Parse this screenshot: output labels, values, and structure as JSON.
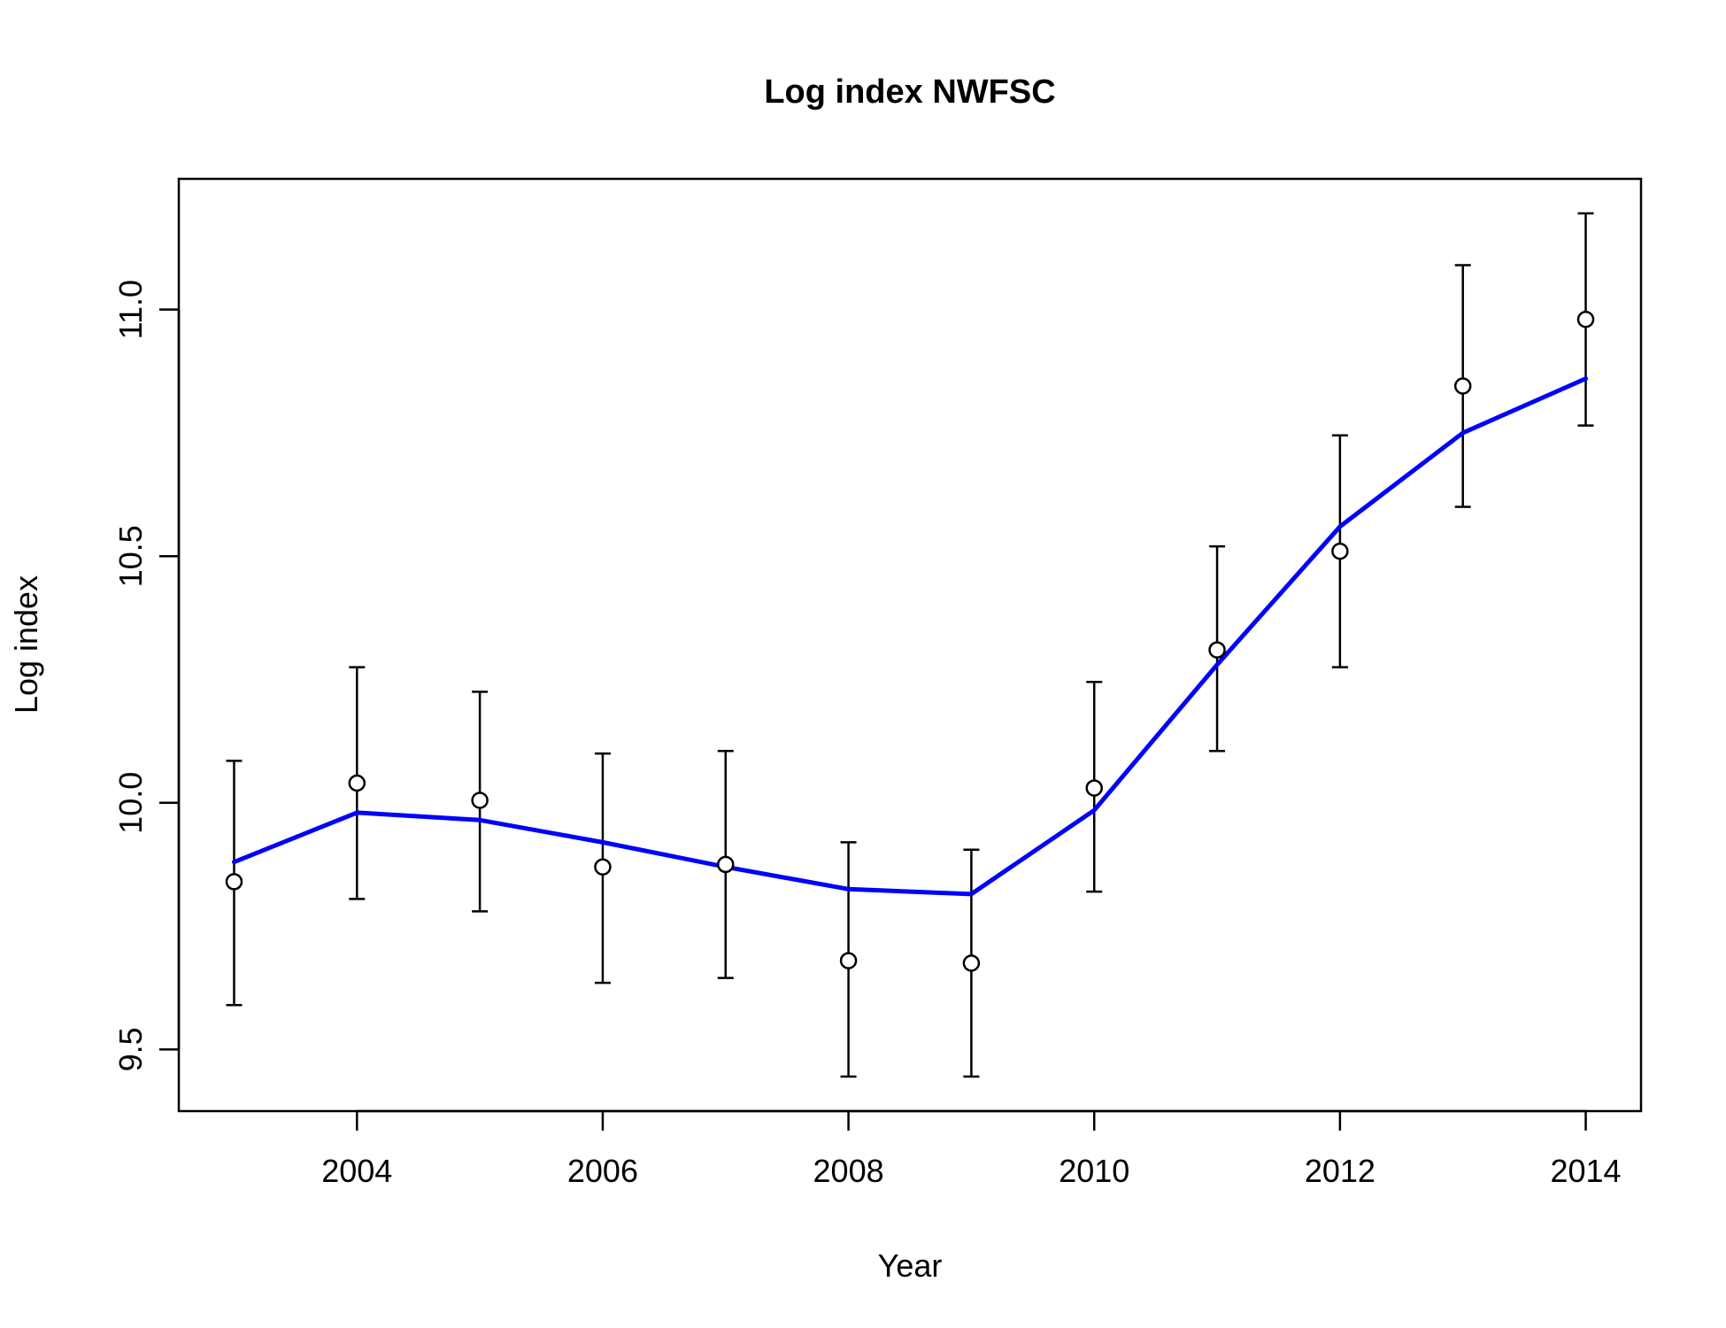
{
  "chart_data": {
    "type": "line",
    "title": "Log index NWFSC",
    "xlabel": "Year",
    "ylabel": "Log index",
    "xlim": [
      2002.55,
      2014.45
    ],
    "ylim": [
      9.375,
      11.265
    ],
    "x_ticks": [
      2004,
      2006,
      2008,
      2010,
      2012,
      2014
    ],
    "x_tick_labels": [
      "2004",
      "2006",
      "2008",
      "2010",
      "2012",
      "2014"
    ],
    "y_ticks": [
      9.5,
      10.0,
      10.5,
      11.0
    ],
    "y_tick_labels": [
      "9.5",
      "10.0",
      "10.5",
      "11.0"
    ],
    "grid": false,
    "legend": "none",
    "series": [
      {
        "kind": "observed",
        "marker": "open-circle",
        "color": "#000000",
        "x": [
          2003,
          2004,
          2005,
          2006,
          2007,
          2008,
          2009,
          2010,
          2011,
          2012,
          2013,
          2014
        ],
        "y": [
          9.84,
          10.04,
          10.005,
          9.87,
          9.875,
          9.68,
          9.675,
          10.03,
          10.31,
          10.51,
          10.845,
          10.98
        ],
        "lower": [
          9.59,
          9.805,
          9.78,
          9.635,
          9.645,
          9.445,
          9.445,
          9.82,
          10.105,
          10.275,
          10.6,
          10.765
        ],
        "upper": [
          10.085,
          10.275,
          10.225,
          10.1,
          10.105,
          9.92,
          9.905,
          10.245,
          10.52,
          10.745,
          11.09,
          11.195
        ]
      },
      {
        "kind": "expected",
        "color": "#0000ff",
        "x": [
          2003,
          2004,
          2005,
          2006,
          2007,
          2008,
          2009,
          2010,
          2011,
          2012,
          2013,
          2014
        ],
        "y": [
          9.88,
          9.98,
          9.965,
          9.92,
          9.87,
          9.825,
          9.815,
          9.985,
          10.28,
          10.56,
          10.75,
          10.86
        ]
      }
    ]
  }
}
